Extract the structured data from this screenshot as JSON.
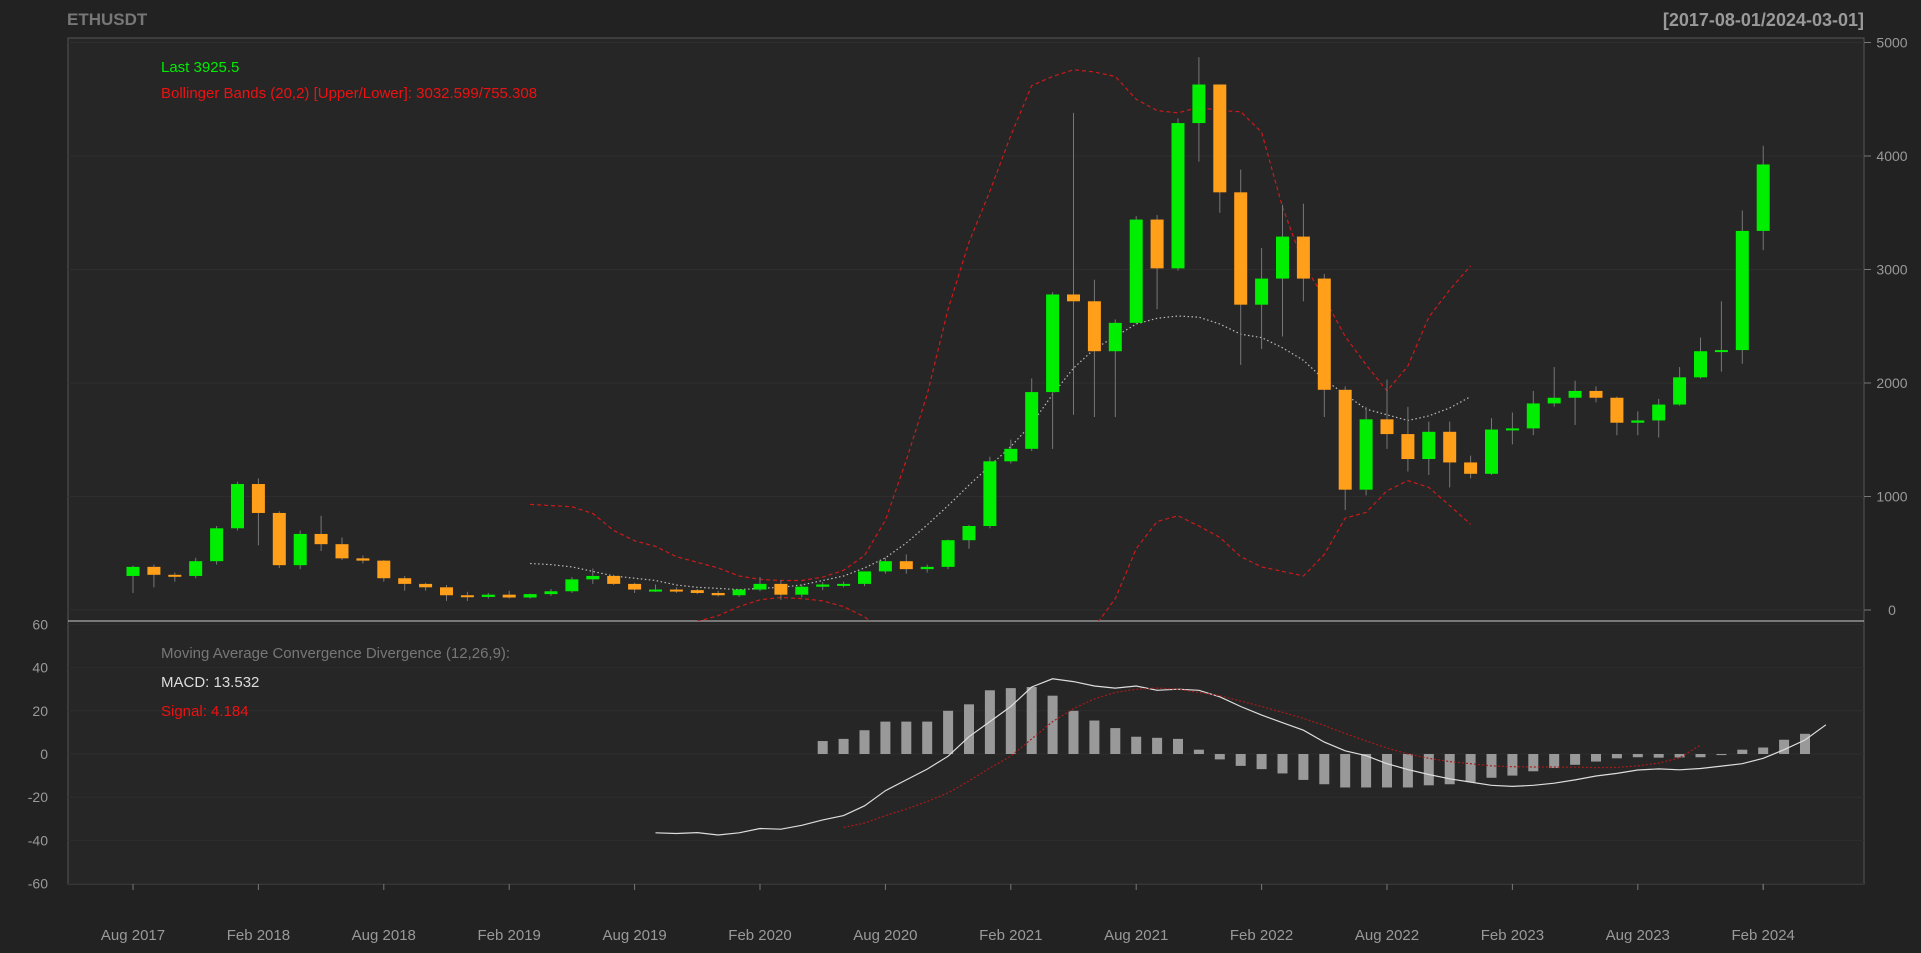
{
  "header": {
    "symbol": "ETHUSDT",
    "range": "[2017-08-01/2024-03-01]"
  },
  "legend": {
    "last": "Last 3925.5",
    "bbands": "Bollinger Bands (20,2) [Upper/Lower]: 3032.599/755.308",
    "macd_title": "Moving Average Convergence Divergence (12,26,9):",
    "macd_value": "MACD: 13.532",
    "signal_value": "Signal: 4.184"
  },
  "colors": {
    "background": "#222222",
    "panel": "#262626",
    "grid": "#2e2e2e",
    "up": "#00ee00",
    "down": "#ff9f1a",
    "bb_band": "#cc1a1a",
    "middle": "#bbbbbb",
    "macd_line": "#dddddd",
    "signal_line": "#aa1a1a",
    "histogram": "#999999",
    "axis_text": "#999999",
    "last_text": "#00ee00",
    "bb_text": "#ee1111"
  },
  "chart_data": [
    {
      "type": "candlestick",
      "title": "ETHUSDT",
      "start": "2017-08",
      "ylim": [
        -100,
        5050
      ],
      "yticks": [
        0,
        1000,
        2000,
        3000,
        4000,
        5000
      ],
      "xticks": [
        {
          "index": 0,
          "label": "Aug 2017"
        },
        {
          "index": 6,
          "label": "Feb 2018"
        },
        {
          "index": 12,
          "label": "Aug 2018"
        },
        {
          "index": 18,
          "label": "Feb 2019"
        },
        {
          "index": 24,
          "label": "Aug 2019"
        },
        {
          "index": 30,
          "label": "Feb 2020"
        },
        {
          "index": 36,
          "label": "Aug 2020"
        },
        {
          "index": 42,
          "label": "Feb 2021"
        },
        {
          "index": 48,
          "label": "Aug 2021"
        },
        {
          "index": 54,
          "label": "Feb 2022"
        },
        {
          "index": 60,
          "label": "Aug 2022"
        },
        {
          "index": 66,
          "label": "Feb 2023"
        },
        {
          "index": 72,
          "label": "Aug 2023"
        },
        {
          "index": 78,
          "label": "Feb 2024"
        }
      ],
      "grid": true,
      "ohlc": [
        [
          300,
          390,
          150,
          380
        ],
        [
          380,
          400,
          200,
          310
        ],
        [
          310,
          330,
          250,
          300
        ],
        [
          300,
          460,
          280,
          430
        ],
        [
          430,
          740,
          400,
          720
        ],
        [
          720,
          1130,
          700,
          1110
        ],
        [
          1110,
          1160,
          570,
          855
        ],
        [
          855,
          870,
          370,
          395
        ],
        [
          395,
          700,
          360,
          670
        ],
        [
          670,
          830,
          520,
          580
        ],
        [
          580,
          640,
          440,
          455
        ],
        [
          455,
          480,
          410,
          435
        ],
        [
          435,
          440,
          250,
          280
        ],
        [
          280,
          300,
          170,
          230
        ],
        [
          230,
          240,
          170,
          200
        ],
        [
          200,
          220,
          80,
          130
        ],
        [
          130,
          160,
          80,
          115
        ],
        [
          115,
          150,
          100,
          135
        ],
        [
          135,
          170,
          100,
          110
        ],
        [
          110,
          145,
          100,
          140
        ],
        [
          140,
          185,
          125,
          165
        ],
        [
          165,
          290,
          150,
          270
        ],
        [
          270,
          365,
          230,
          300
        ],
        [
          300,
          310,
          220,
          230
        ],
        [
          230,
          240,
          150,
          180
        ],
        [
          180,
          225,
          160,
          180
        ],
        [
          180,
          200,
          150,
          175
        ],
        [
          175,
          185,
          140,
          150
        ],
        [
          150,
          170,
          120,
          130
        ],
        [
          130,
          185,
          115,
          180
        ],
        [
          180,
          290,
          165,
          230
        ],
        [
          230,
          265,
          90,
          135
        ],
        [
          135,
          225,
          110,
          205
        ],
        [
          205,
          245,
          175,
          225
        ],
        [
          225,
          250,
          200,
          230
        ],
        [
          230,
          320,
          210,
          340
        ],
        [
          340,
          460,
          320,
          430
        ],
        [
          430,
          490,
          320,
          360
        ],
        [
          360,
          400,
          330,
          380
        ],
        [
          380,
          620,
          360,
          615
        ],
        [
          615,
          750,
          540,
          740
        ],
        [
          740,
          1350,
          720,
          1310
        ],
        [
          1310,
          1500,
          1290,
          1420
        ],
        [
          1420,
          2040,
          1400,
          1920
        ],
        [
          1920,
          2800,
          1420,
          2780
        ],
        [
          2780,
          4380,
          1720,
          2720
        ],
        [
          2720,
          2910,
          1700,
          2280
        ],
        [
          2280,
          2560,
          1700,
          2530
        ],
        [
          2530,
          3470,
          2520,
          3440
        ],
        [
          3440,
          3480,
          2650,
          3010
        ],
        [
          3010,
          4330,
          2990,
          4290
        ],
        [
          4290,
          4870,
          3950,
          4630
        ],
        [
          4630,
          4630,
          3500,
          3680
        ],
        [
          3680,
          3880,
          2160,
          2690
        ],
        [
          2690,
          3190,
          2300,
          2920
        ],
        [
          2920,
          3570,
          2410,
          3290
        ],
        [
          3290,
          3580,
          2720,
          2920
        ],
        [
          2920,
          2960,
          1700,
          1940
        ],
        [
          1940,
          1970,
          880,
          1060
        ],
        [
          1060,
          1790,
          1010,
          1680
        ],
        [
          1680,
          2030,
          1420,
          1550
        ],
        [
          1550,
          1790,
          1220,
          1330
        ],
        [
          1330,
          1660,
          1190,
          1570
        ],
        [
          1570,
          1660,
          1080,
          1300
        ],
        [
          1300,
          1360,
          1160,
          1200
        ],
        [
          1200,
          1690,
          1190,
          1590
        ],
        [
          1590,
          1740,
          1460,
          1600
        ],
        [
          1600,
          1930,
          1540,
          1820
        ],
        [
          1820,
          2140,
          1790,
          1870
        ],
        [
          1870,
          2020,
          1630,
          1930
        ],
        [
          1930,
          1970,
          1830,
          1870
        ],
        [
          1870,
          1880,
          1540,
          1650
        ],
        [
          1650,
          1750,
          1540,
          1670
        ],
        [
          1670,
          1860,
          1520,
          1810
        ],
        [
          1810,
          2140,
          1800,
          2050
        ],
        [
          2050,
          2400,
          2040,
          2280
        ],
        [
          2280,
          2720,
          2100,
          2290
        ],
        [
          2290,
          3520,
          2170,
          3340
        ],
        [
          3340,
          4090,
          3170,
          3925.5
        ]
      ],
      "bb_upper": {
        "start": 19,
        "values": [
          930,
          920,
          910,
          850,
          700,
          610,
          560,
          470,
          420,
          370,
          300,
          270,
          260,
          260,
          290,
          350,
          480,
          790,
          1320,
          1900,
          2650,
          3240,
          3690,
          4180,
          4620,
          4700,
          4760,
          4740,
          4700,
          4500,
          4400,
          4380,
          4430,
          4400,
          4390,
          4210,
          3550,
          3050,
          2750,
          2410,
          2160,
          1930,
          2150,
          2580,
          2820,
          3032.6
        ]
      },
      "bb_middle": {
        "start": 19,
        "values": [
          410,
          400,
          380,
          340,
          300,
          280,
          260,
          220,
          200,
          190,
          180,
          190,
          200,
          220,
          260,
          300,
          370,
          460,
          590,
          750,
          920,
          1100,
          1270,
          1440,
          1640,
          1900,
          2130,
          2300,
          2410,
          2520,
          2570,
          2590,
          2580,
          2520,
          2430,
          2400,
          2310,
          2200,
          2030,
          1900,
          1770,
          1720,
          1670,
          1710,
          1780,
          1880
        ]
      },
      "bb_lower": {
        "start": 19,
        "values": [
          -110,
          -120,
          -150,
          -180,
          -190,
          -170,
          -150,
          -130,
          -100,
          -50,
          30,
          90,
          110,
          100,
          80,
          30,
          -60,
          -200,
          -340,
          -600,
          -830,
          -1050,
          -1150,
          -1290,
          -1360,
          -900,
          -400,
          -150,
          100,
          540,
          780,
          830,
          740,
          640,
          470,
          380,
          340,
          300,
          490,
          810,
          860,
          1050,
          1140,
          1080,
          920,
          755.3
        ]
      }
    },
    {
      "type": "macd",
      "title": "Moving Average Convergence Divergence (12,26,9):",
      "ylim": [
        -60,
        60
      ],
      "yticks": [
        -60,
        -40,
        -20,
        0,
        20,
        40,
        60
      ],
      "grid": true,
      "macd": {
        "start": 25,
        "values": [
          -36.5,
          -36.8,
          -36.4,
          -37.5,
          -36.5,
          -34.5,
          -34.8,
          -33,
          -30.5,
          -28.5,
          -24,
          -17,
          -12,
          -7,
          -1,
          8,
          15,
          22,
          31,
          34.8,
          33.5,
          31.5,
          30.5,
          31.5,
          29.5,
          30,
          29.5,
          26.5,
          22,
          18,
          14.5,
          11,
          5.5,
          1.5,
          -0.8,
          -4.5,
          -7.2,
          -9.5,
          -11.5,
          -13,
          -14.5,
          -15,
          -14.5,
          -13.5,
          -12,
          -10.2,
          -9,
          -7.4,
          -6.9,
          -7.3,
          -6.7,
          -5.6,
          -4.5,
          -2,
          2,
          6.5,
          13.532
        ]
      },
      "signal": {
        "start": 34,
        "values": [
          -34,
          -32,
          -28.5,
          -25.5,
          -22,
          -18,
          -12.5,
          -6.5,
          -1,
          7,
          15,
          21,
          25.5,
          28.5,
          30,
          30.5,
          30,
          28.5,
          27,
          24.5,
          22,
          19.3,
          16.5,
          13.2,
          9.5,
          6,
          2.8,
          0,
          -2,
          -3.5,
          -4.5,
          -5.5,
          -5.9,
          -6,
          -6,
          -6.1,
          -6.3,
          -6.2,
          -5.5,
          -4.2,
          -1.8,
          4.184
        ]
      },
      "histogram": {
        "start": 33,
        "values": [
          6,
          7,
          11,
          15,
          15,
          15,
          20,
          23,
          29.5,
          30.5,
          31,
          27,
          20,
          15.5,
          12,
          8,
          7.5,
          7,
          2,
          -2.5,
          -5.5,
          -7,
          -9,
          -12,
          -14,
          -15.5,
          -15.5,
          -15.5,
          -15.5,
          -14.5,
          -14,
          -13,
          -11,
          -10,
          -8,
          -6.5,
          -5,
          -3.5,
          -2,
          -1.5,
          -1.7,
          -1.6,
          -1.5,
          -0.5,
          2,
          3,
          6.6,
          9.348
        ]
      }
    }
  ]
}
